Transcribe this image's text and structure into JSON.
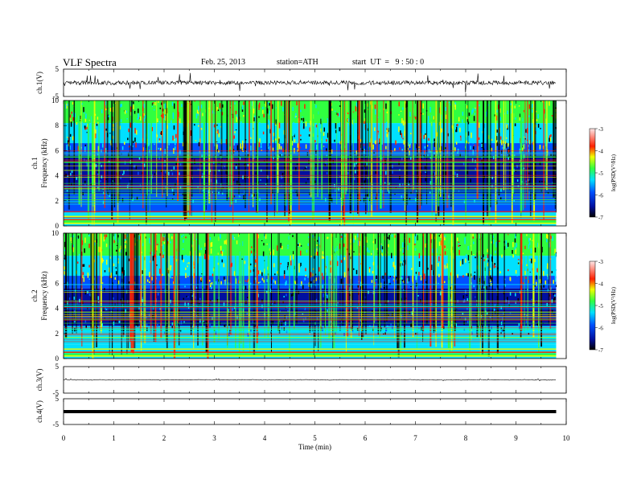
{
  "header": {
    "title": "VLF Spectra",
    "date": "Feb. 25, 2013",
    "station": "station=ATH",
    "start_ut": "start  UT  =   9 : 50 : 0"
  },
  "colors": {
    "black": "#000000",
    "darkblue": "#0010a0",
    "blue": "#0050ff",
    "cyan": "#00e0ff",
    "green": "#30ff40",
    "yellow": "#f0ff00",
    "red": "#ff2000",
    "pink": "#ffb0b0"
  },
  "chart_data": [
    {
      "type": "line",
      "ylabel": "ch.1(V)",
      "ylim": [
        -5,
        5
      ],
      "yticks": [
        "5",
        "-5"
      ],
      "x_range": [
        0,
        9.8
      ],
      "baseline_value": 0
    },
    {
      "type": "heatmap",
      "ylabel": "ch.1\nFrequency (kHz)",
      "ylabel_parts": [
        "ch.1",
        "Frequency (kHz)"
      ],
      "ylim": [
        0,
        10
      ],
      "yticks": [
        "0",
        "2",
        "4",
        "6",
        "8",
        "10"
      ],
      "x_range": [
        0,
        9.8
      ],
      "colorbar": {
        "label": "log(PSD(V²/Hz)",
        "range": [
          -7,
          -3
        ],
        "ticks": [
          "-3",
          "-4",
          "-5",
          "-6",
          "-7"
        ]
      }
    },
    {
      "type": "heatmap",
      "ylabel": "ch.2\nFrequency (kHz)",
      "ylabel_parts": [
        "ch.2",
        "Frequency (kHz)"
      ],
      "ylim": [
        0,
        10
      ],
      "yticks": [
        "0",
        "2",
        "4",
        "6",
        "8",
        "10"
      ],
      "x_range": [
        0,
        9.8
      ],
      "colorbar": {
        "label": "log(PSD(V²/Hz)",
        "range": [
          -7,
          -3
        ],
        "ticks": [
          "-3",
          "-4",
          "-5",
          "-6",
          "-7"
        ]
      }
    },
    {
      "type": "line",
      "ylabel": "ch.3(V)",
      "ylim": [
        -5,
        5
      ],
      "yticks": [
        "5",
        "-5"
      ],
      "x_range": [
        0,
        9.8
      ],
      "baseline_value": 0
    },
    {
      "type": "line",
      "ylabel": "ch.4(V)",
      "ylim": [
        -5,
        5
      ],
      "yticks": [
        "5",
        "-5"
      ],
      "x_range": [
        0,
        9.8
      ],
      "baseline_value": 0
    }
  ],
  "x_axis": {
    "label": "Time  (min)",
    "xlim": [
      0,
      10
    ],
    "ticks": [
      "0",
      "1",
      "2",
      "3",
      "4",
      "5",
      "6",
      "7",
      "8",
      "9",
      "10"
    ]
  }
}
